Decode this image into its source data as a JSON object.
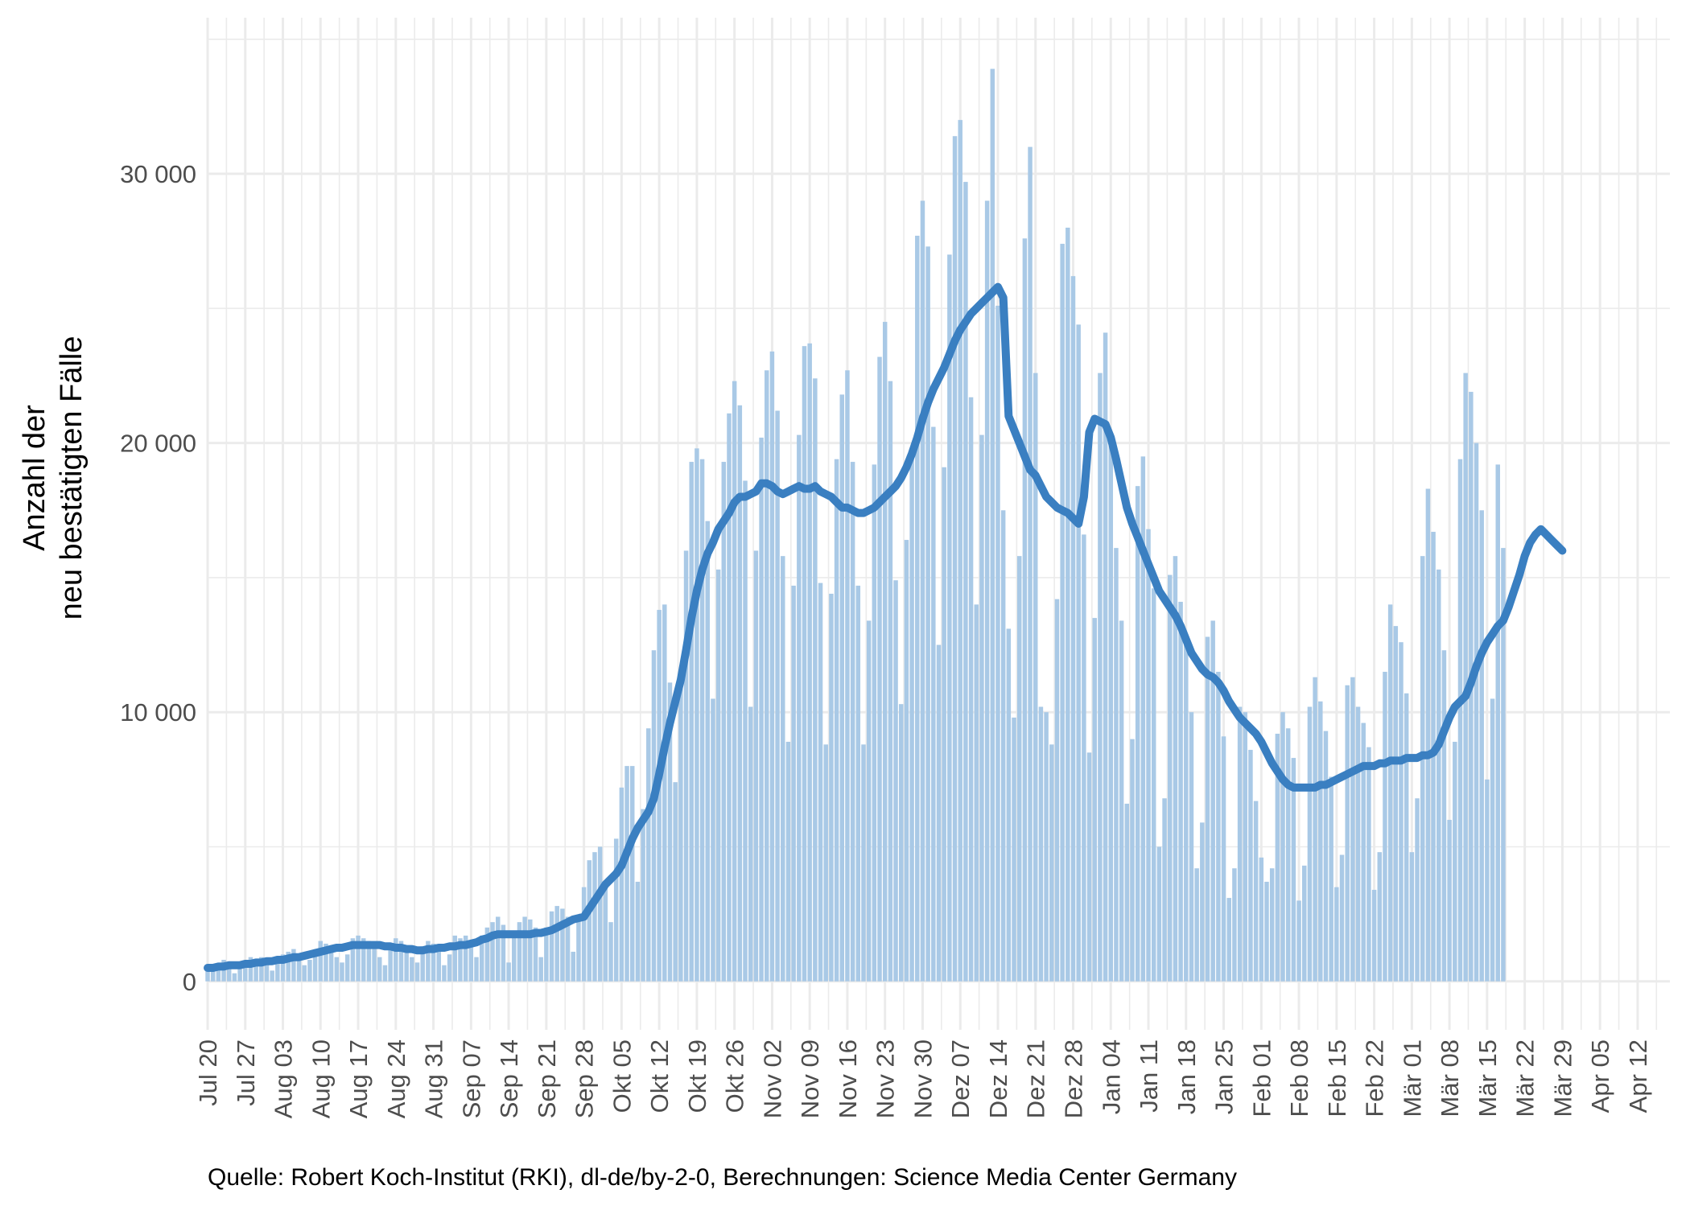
{
  "chart_data": {
    "type": "bar",
    "ylabel_line1": "Anzahl der",
    "ylabel_line2": "neu bestätigten Fälle",
    "caption": "Quelle: Robert Koch-Institut (RKI), dl-de/by-2-0, Berechnungen: Science Media Center Germany",
    "ylim": [
      -1800,
      35800
    ],
    "y_ticks": [
      0,
      10000,
      20000,
      30000
    ],
    "y_tick_labels": [
      "0",
      "10 000",
      "20 000",
      "30 000"
    ],
    "x_tick_labels": [
      "Jul 20",
      "Jul 27",
      "Aug 03",
      "Aug 10",
      "Aug 17",
      "Aug 24",
      "Aug 31",
      "Sep 07",
      "Sep 14",
      "Sep 21",
      "Sep 28",
      "Okt 05",
      "Okt 12",
      "Okt 19",
      "Okt 26",
      "Nov 02",
      "Nov 09",
      "Nov 16",
      "Nov 23",
      "Nov 30",
      "Dez 07",
      "Dez 14",
      "Dez 21",
      "Dez 28",
      "Jan 04",
      "Jan 11",
      "Jan 18",
      "Jan 25",
      "Feb 01",
      "Feb 08",
      "Feb 15",
      "Feb 22",
      "Mär 01",
      "Mär 08",
      "Mär 15",
      "Mär 22",
      "Mär 29",
      "Apr 05",
      "Apr 12"
    ],
    "x_start_label": "Jul 20",
    "grid": true,
    "bar_color": "#a9c9e6",
    "line_color": "#3a7fc1",
    "shade_color": "#d3d3d3",
    "shaded_period_days": [
      356,
      359
    ],
    "daily_cases": [
      400,
      600,
      500,
      800,
      700,
      300,
      600,
      700,
      900,
      800,
      900,
      700,
      400,
      800,
      1000,
      1100,
      1200,
      900,
      600,
      800,
      1000,
      1500,
      1400,
      1300,
      900,
      700,
      1000,
      1600,
      1700,
      1600,
      1500,
      1400,
      900,
      600,
      1400,
      1600,
      1500,
      1300,
      900,
      700,
      1300,
      1500,
      1400,
      1300,
      600,
      1000,
      1700,
      1600,
      1700,
      1300,
      900,
      1700,
      2000,
      2200,
      2400,
      2100,
      700,
      1800,
      2200,
      2400,
      2300,
      2000,
      900,
      2000,
      2600,
      2800,
      2700,
      2400,
      1100,
      2400,
      3500,
      4500,
      4800,
      5000,
      3600,
      2200,
      5300,
      7200,
      8000,
      8000,
      3700,
      6400,
      9400,
      12300,
      13800,
      14000,
      11100,
      7400,
      11200,
      16000,
      19300,
      19800,
      19400,
      17100,
      10500,
      15300,
      19300,
      21100,
      22300,
      21400,
      18600,
      10200,
      16000,
      20200,
      22700,
      23400,
      21200,
      15800,
      8900,
      14700,
      20300,
      23600,
      23700,
      22400,
      14800,
      8800,
      14400,
      19400,
      21800,
      22700,
      19300,
      14700,
      8800,
      13400,
      19200,
      23200,
      24500,
      22300,
      14900,
      10300,
      16400,
      19600,
      27700,
      29000,
      27300,
      20600,
      12500,
      19100,
      27000,
      31400,
      32000,
      29700,
      21700,
      14000,
      20300,
      29000,
      33900,
      25100,
      17500,
      13100,
      9800,
      15800,
      27600,
      31000,
      22600,
      10200,
      10000,
      8800,
      14200,
      27400,
      28000,
      26200,
      24400,
      16600,
      8500,
      13500,
      22600,
      24100,
      20400,
      16100,
      13400,
      6600,
      9000,
      18400,
      19500,
      16800,
      14600,
      5000,
      6800,
      15100,
      15800,
      14100,
      12500,
      10000,
      4200,
      5900,
      12800,
      13400,
      11500,
      9100,
      3100,
      4200,
      10200,
      10000,
      8600,
      6700,
      4600,
      3700,
      4200,
      9200,
      10000,
      9400,
      8300,
      3000,
      4300,
      10200,
      11300,
      10400,
      9300,
      7600,
      3500,
      4700,
      11000,
      11300,
      10200,
      9600,
      8700,
      3400,
      4800,
      11500,
      14000,
      13200,
      12600,
      10700,
      4800,
      6800,
      15800,
      18300,
      16700,
      15300,
      12300,
      6000,
      8900,
      19400,
      22600,
      21900,
      20000,
      17500,
      7500,
      10500,
      19200,
      16100,
      0,
      0,
      0,
      0,
      0,
      0,
      0,
      0,
      0,
      0,
      0,
      0,
      0,
      0,
      0,
      0,
      0,
      0,
      0,
      0,
      0,
      0,
      0,
      0,
      0,
      0,
      0,
      0,
      0,
      0,
      0
    ],
    "rolling_average": [
      500,
      500,
      550,
      550,
      600,
      600,
      600,
      650,
      650,
      700,
      700,
      750,
      750,
      800,
      800,
      850,
      900,
      900,
      950,
      1000,
      1050,
      1100,
      1150,
      1200,
      1250,
      1250,
      1300,
      1350,
      1350,
      1350,
      1350,
      1350,
      1350,
      1300,
      1300,
      1250,
      1250,
      1200,
      1200,
      1150,
      1150,
      1200,
      1200,
      1250,
      1250,
      1300,
      1300,
      1350,
      1350,
      1400,
      1450,
      1550,
      1600,
      1700,
      1750,
      1750,
      1750,
      1750,
      1750,
      1750,
      1750,
      1800,
      1800,
      1850,
      1900,
      2000,
      2100,
      2200,
      2300,
      2350,
      2400,
      2700,
      3000,
      3300,
      3600,
      3800,
      4000,
      4300,
      4800,
      5300,
      5700,
      6000,
      6300,
      6800,
      7700,
      8700,
      9600,
      10400,
      11200,
      12300,
      13500,
      14500,
      15300,
      15900,
      16300,
      16800,
      17100,
      17400,
      17800,
      18000,
      18000,
      18100,
      18200,
      18500,
      18500,
      18400,
      18200,
      18100,
      18200,
      18300,
      18400,
      18300,
      18300,
      18400,
      18200,
      18100,
      18000,
      17800,
      17600,
      17600,
      17500,
      17400,
      17400,
      17500,
      17600,
      17800,
      18000,
      18200,
      18400,
      18700,
      19100,
      19600,
      20200,
      20900,
      21500,
      22000,
      22400,
      22800,
      23300,
      23800,
      24200,
      24500,
      24800,
      25000,
      25200,
      25400,
      25600,
      25800,
      25400,
      21000,
      20500,
      20000,
      19500,
      19000,
      18800,
      18400,
      18000,
      17800,
      17600,
      17500,
      17400,
      17200,
      17000,
      18000,
      20400,
      20900,
      20800,
      20700,
      20200,
      19400,
      18500,
      17600,
      17000,
      16500,
      16000,
      15500,
      15000,
      14500,
      14200,
      13900,
      13600,
      13200,
      12700,
      12200,
      11900,
      11600,
      11400,
      11300,
      11100,
      10800,
      10400,
      10100,
      9800,
      9600,
      9400,
      9200,
      8900,
      8500,
      8100,
      7800,
      7500,
      7300,
      7200,
      7200,
      7200,
      7200,
      7200,
      7300,
      7300,
      7400,
      7500,
      7600,
      7700,
      7800,
      7900,
      8000,
      8000,
      8000,
      8100,
      8100,
      8200,
      8200,
      8200,
      8300,
      8300,
      8300,
      8400,
      8400,
      8500,
      8800,
      9300,
      9800,
      10200,
      10400,
      10600,
      11100,
      11700,
      12200,
      12600,
      12900,
      13200,
      13400,
      13900,
      14500,
      15100,
      15800,
      16300,
      16600,
      16800,
      16600,
      16400,
      16200,
      16000,
      0,
      0,
      0,
      0,
      0,
      0,
      0,
      0,
      0,
      0,
      0,
      0,
      0,
      0,
      0,
      0,
      0,
      0,
      0,
      0,
      0,
      0,
      0,
      0,
      0,
      0,
      0,
      0,
      0,
      0,
      0
    ]
  }
}
